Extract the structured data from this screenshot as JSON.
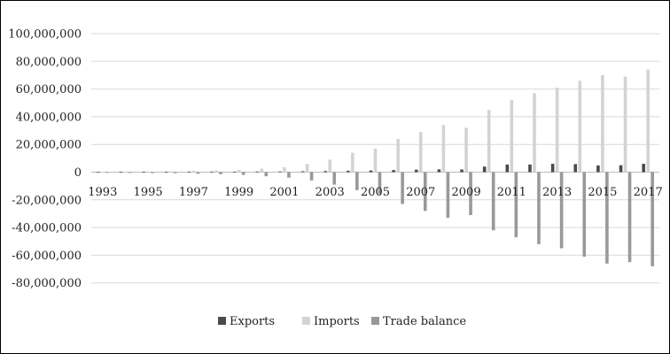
{
  "chart_data": {
    "type": "bar",
    "title": "",
    "xlabel": "",
    "ylabel": "",
    "ylim": [
      -100000000,
      100000000
    ],
    "y_ticks": [
      100000000,
      80000000,
      60000000,
      40000000,
      20000000,
      0,
      -20000000,
      -40000000,
      -60000000,
      -80000000
    ],
    "y_tick_labels": [
      "100,000,000",
      "80,000,000",
      "60,000,000",
      "40,000,000",
      "20,000,000",
      "0",
      "-20,000,000",
      "-40,000,000",
      "-60,000,000",
      "-80,000,000"
    ],
    "categories": [
      "1993",
      "1994",
      "1995",
      "1996",
      "1997",
      "1998",
      "1999",
      "2000",
      "2001",
      "2002",
      "2003",
      "2004",
      "2005",
      "2006",
      "2007",
      "2008",
      "2009",
      "2010",
      "2011",
      "2012",
      "2013",
      "2014",
      "2015",
      "2016",
      "2017"
    ],
    "x_tick_labels": [
      "1993",
      "1995",
      "1997",
      "1999",
      "2001",
      "2003",
      "2005",
      "2007",
      "2009",
      "2011",
      "2013",
      "2015",
      "2017"
    ],
    "legend_position": "bottom",
    "grid": "horizontal",
    "series": [
      {
        "name": "Exports",
        "color": "#4a4a4a",
        "values": [
          100000,
          150000,
          200000,
          250000,
          300000,
          350000,
          400000,
          450000,
          500000,
          600000,
          800000,
          1000000,
          1200000,
          1500000,
          1800000,
          2000000,
          1900000,
          4000000,
          5500000,
          5500000,
          6000000,
          5800000,
          4800000,
          5000000,
          6000000
        ]
      },
      {
        "name": "Imports",
        "color": "#d3d3d3",
        "values": [
          300000,
          400000,
          500000,
          600000,
          900000,
          1200000,
          1500000,
          2500000,
          3500000,
          6000000,
          9000000,
          14000000,
          17000000,
          24000000,
          29000000,
          34000000,
          32000000,
          45000000,
          52000000,
          57000000,
          61000000,
          66000000,
          70000000,
          69000000,
          74000000
        ]
      },
      {
        "name": "Trade balance",
        "color": "#999999",
        "values": [
          -500000,
          -600000,
          -700000,
          -800000,
          -1200000,
          -1500000,
          -2000000,
          -3000000,
          -4000000,
          -6000000,
          -9000000,
          -13000000,
          -16000000,
          -23000000,
          -28000000,
          -33000000,
          -31000000,
          -42000000,
          -47000000,
          -52000000,
          -55000000,
          -61000000,
          -66000000,
          -65000000,
          -68000000
        ]
      }
    ]
  }
}
